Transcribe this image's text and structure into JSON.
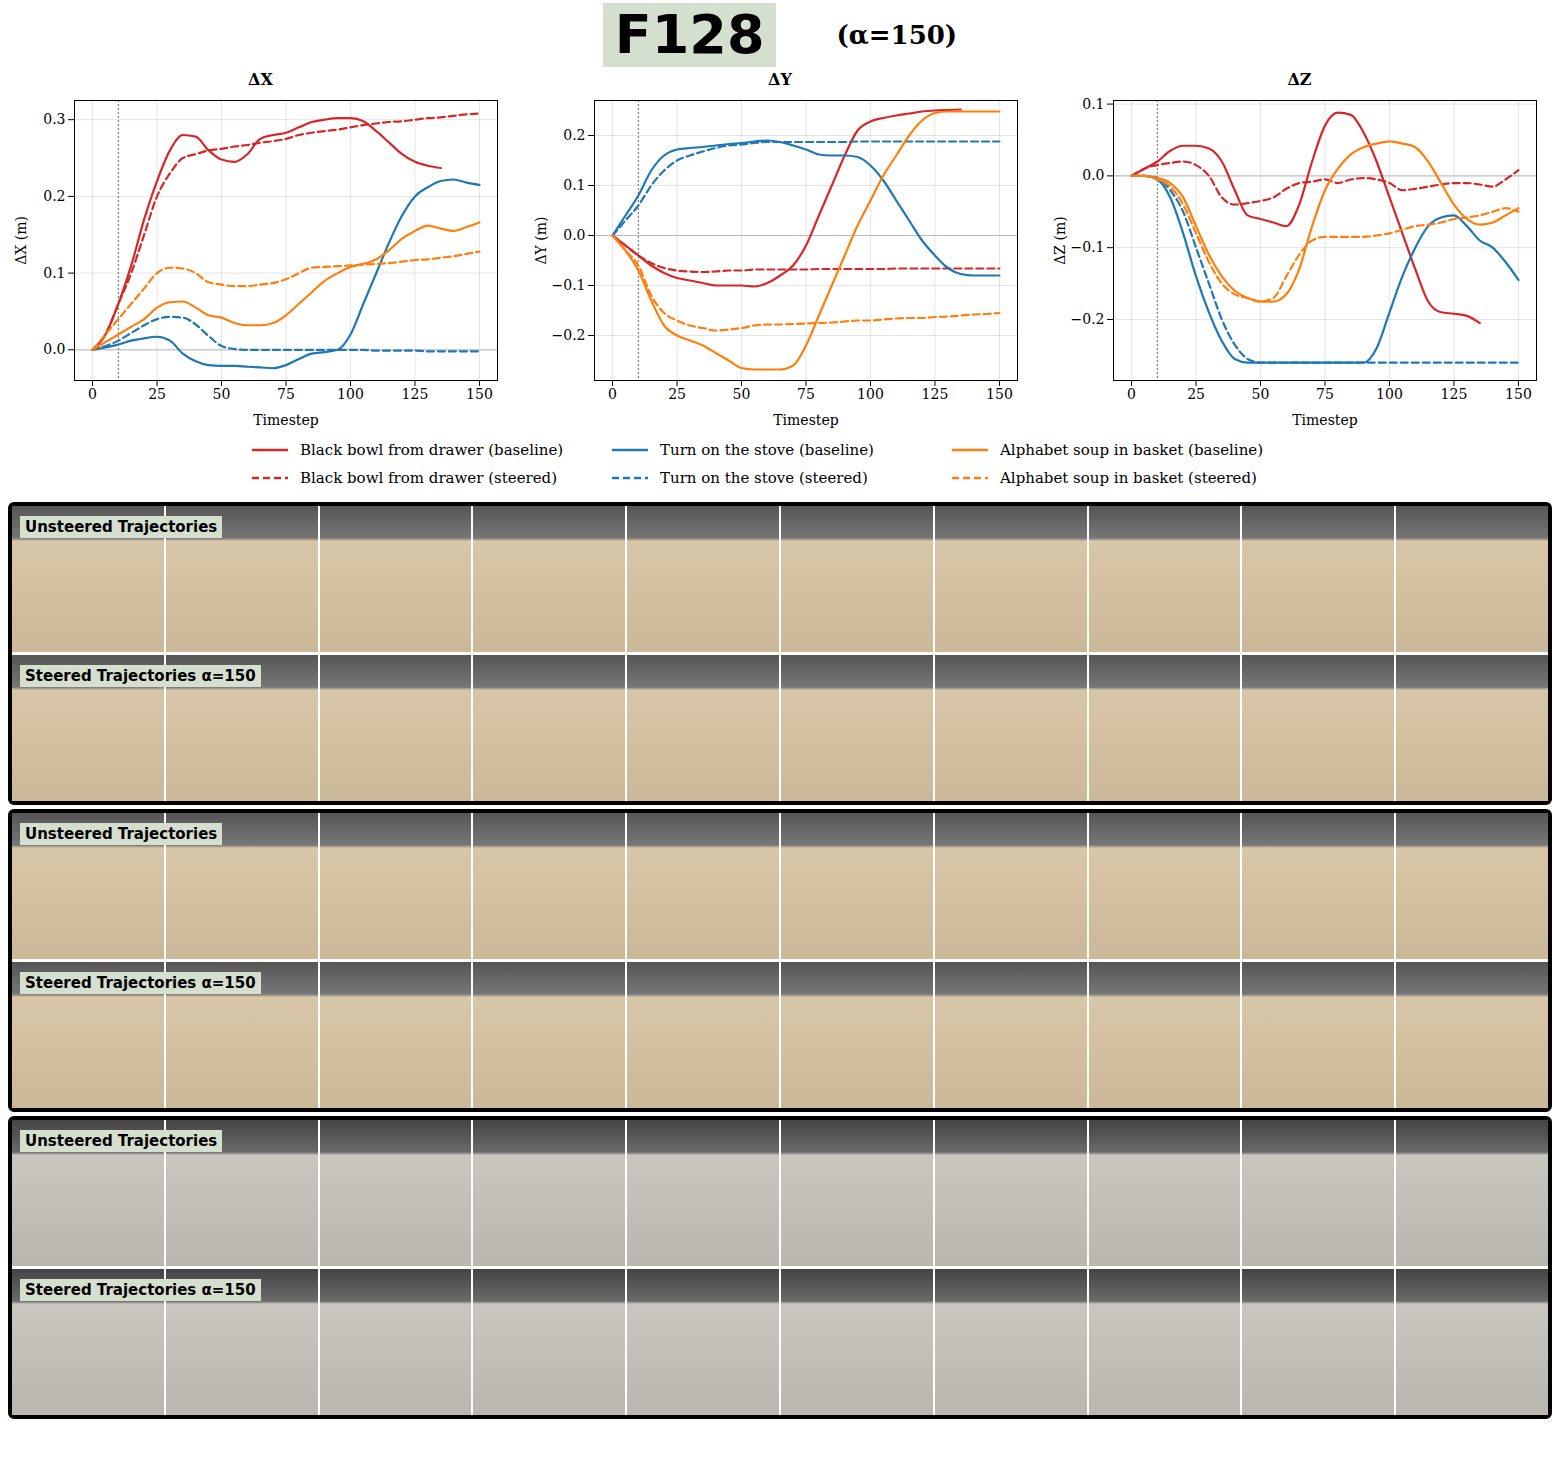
{
  "title": "F128",
  "subtitle": "(α=150)",
  "image_strips": [
    [
      "Unsteered Trajectories",
      "Steered Trajectories α=150"
    ],
    [
      "Unsteered Trajectories",
      "Steered Trajectories α=150"
    ],
    [
      "Unsteered Trajectories",
      "Steered Trajectories α=150"
    ]
  ],
  "chart_data": [
    {
      "type": "line",
      "title": "ΔX",
      "x_label": "Timestep",
      "y_label": "ΔX (m)",
      "grid": true,
      "vline": 10,
      "hline": 0,
      "xlim": [
        -7,
        157
      ],
      "xticks": [
        0,
        25,
        50,
        75,
        100,
        125,
        150
      ],
      "ylim": [
        -0.04,
        0.325
      ],
      "yticks": [
        {
          "value": 0,
          "label": "0.0"
        },
        {
          "value": 0.1,
          "label": "0.1"
        },
        {
          "value": 0.2,
          "label": "0.2"
        },
        {
          "value": 0.3,
          "label": "0.3"
        }
      ],
      "x": [
        0,
        5,
        10,
        15,
        20,
        25,
        30,
        35,
        40,
        45,
        50,
        55,
        60,
        65,
        70,
        75,
        80,
        85,
        90,
        95,
        100,
        105,
        110,
        115,
        120,
        125,
        130,
        135,
        140,
        145,
        150
      ],
      "series": [
        {
          "name": "Black bowl from drawer (baseline)",
          "color": "#d62728",
          "line_style": "solid",
          "values": [
            0,
            0.02,
            0.06,
            0.11,
            0.17,
            0.22,
            0.26,
            0.28,
            0.278,
            0.26,
            0.248,
            0.245,
            0.255,
            0.275,
            0.28,
            0.283,
            0.29,
            0.297,
            0.3,
            0.302,
            0.302,
            0.298,
            0.285,
            0.27,
            0.255,
            0.245,
            0.24,
            0.237,
            null,
            null,
            null
          ]
        },
        {
          "name": "Black bowl from drawer (steered)",
          "color": "#d62728",
          "line_style": "dashed",
          "values": [
            0,
            0.02,
            0.06,
            0.1,
            0.15,
            0.2,
            0.23,
            0.25,
            0.255,
            0.26,
            0.262,
            0.265,
            0.267,
            0.27,
            0.272,
            0.275,
            0.28,
            0.283,
            0.285,
            0.287,
            0.29,
            0.293,
            0.295,
            0.297,
            0.298,
            0.3,
            0.302,
            0.303,
            0.305,
            0.307,
            0.308
          ]
        },
        {
          "name": "Turn on the stove (baseline)",
          "color": "#1f77b4",
          "line_style": "solid",
          "values": [
            0,
            0.003,
            0.007,
            0.012,
            0.015,
            0.017,
            0.012,
            -0.005,
            -0.015,
            -0.02,
            -0.021,
            -0.021,
            -0.022,
            -0.023,
            -0.024,
            -0.02,
            -0.012,
            -0.005,
            -0.003,
            0,
            0.02,
            0.06,
            0.1,
            0.14,
            0.175,
            0.2,
            0.212,
            0.22,
            0.222,
            0.218,
            0.215
          ]
        },
        {
          "name": "Turn on the stove (steered)",
          "color": "#1f77b4",
          "line_style": "dashed",
          "values": [
            0,
            0.005,
            0.012,
            0.022,
            0.032,
            0.04,
            0.043,
            0.042,
            0.033,
            0.018,
            0.005,
            0.001,
            0,
            0,
            0,
            0,
            0,
            0,
            0,
            0,
            0,
            0,
            -0.001,
            -0.001,
            -0.001,
            -0.001,
            -0.002,
            -0.002,
            -0.002,
            -0.002,
            -0.002
          ]
        },
        {
          "name": "Alphabet soup in basket (baseline)",
          "color": "#ff7f0e",
          "line_style": "solid",
          "values": [
            0,
            0.01,
            0.02,
            0.03,
            0.04,
            0.055,
            0.062,
            0.063,
            0.055,
            0.045,
            0.042,
            0.035,
            0.032,
            0.032,
            0.035,
            0.045,
            0.06,
            0.075,
            0.09,
            0.1,
            0.108,
            0.112,
            0.118,
            0.13,
            0.145,
            0.155,
            0.162,
            0.158,
            0.155,
            0.16,
            0.166
          ]
        },
        {
          "name": "Alphabet soup in basket (steered)",
          "color": "#ff7f0e",
          "line_style": "dashed",
          "values": [
            0,
            0.02,
            0.04,
            0.06,
            0.08,
            0.1,
            0.107,
            0.106,
            0.1,
            0.088,
            0.085,
            0.083,
            0.083,
            0.085,
            0.087,
            0.092,
            0.1,
            0.107,
            0.108,
            0.109,
            0.11,
            0.111,
            0.112,
            0.113,
            0.115,
            0.117,
            0.118,
            0.12,
            0.122,
            0.125,
            0.128
          ]
        }
      ]
    },
    {
      "type": "line",
      "title": "ΔY",
      "x_label": "Timestep",
      "y_label": "ΔY (m)",
      "grid": true,
      "vline": 10,
      "hline": 0,
      "xlim": [
        -7,
        157
      ],
      "xticks": [
        0,
        25,
        50,
        75,
        100,
        125,
        150
      ],
      "ylim": [
        -0.29,
        0.27
      ],
      "yticks": [
        {
          "value": -0.2,
          "label": "−0.2"
        },
        {
          "value": -0.1,
          "label": "−0.1"
        },
        {
          "value": 0,
          "label": "0.0"
        },
        {
          "value": 0.1,
          "label": "0.1"
        },
        {
          "value": 0.2,
          "label": "0.2"
        }
      ],
      "x": [
        0,
        5,
        10,
        15,
        20,
        25,
        30,
        35,
        40,
        45,
        50,
        55,
        60,
        65,
        70,
        75,
        80,
        85,
        90,
        95,
        100,
        105,
        110,
        115,
        120,
        125,
        130,
        135,
        140,
        145,
        150
      ],
      "series": [
        {
          "name": "Black bowl from drawer (baseline)",
          "color": "#d62728",
          "line_style": "solid",
          "values": [
            0,
            -0.02,
            -0.04,
            -0.06,
            -0.075,
            -0.085,
            -0.09,
            -0.095,
            -0.1,
            -0.1,
            -0.1,
            -0.102,
            -0.095,
            -0.08,
            -0.06,
            -0.02,
            0.04,
            0.1,
            0.16,
            0.21,
            0.228,
            0.235,
            0.24,
            0.244,
            0.248,
            0.25,
            0.251,
            0.252,
            null,
            null,
            null
          ]
        },
        {
          "name": "Black bowl from drawer (steered)",
          "color": "#d62728",
          "line_style": "dashed",
          "values": [
            0,
            -0.02,
            -0.04,
            -0.055,
            -0.065,
            -0.07,
            -0.072,
            -0.073,
            -0.072,
            -0.07,
            -0.07,
            -0.068,
            -0.068,
            -0.068,
            -0.068,
            -0.068,
            -0.067,
            -0.067,
            -0.067,
            -0.067,
            -0.067,
            -0.067,
            -0.066,
            -0.066,
            -0.066,
            -0.066,
            -0.066,
            -0.066,
            -0.066,
            -0.066,
            -0.066
          ]
        },
        {
          "name": "Turn on the stove (baseline)",
          "color": "#1f77b4",
          "line_style": "solid",
          "values": [
            0,
            0.04,
            0.08,
            0.13,
            0.16,
            0.172,
            0.175,
            0.177,
            0.18,
            0.183,
            0.185,
            0.188,
            0.19,
            0.187,
            0.18,
            0.172,
            0.162,
            0.16,
            0.16,
            0.157,
            0.14,
            0.11,
            0.07,
            0.03,
            -0.01,
            -0.04,
            -0.065,
            -0.077,
            -0.08,
            -0.08,
            -0.08
          ]
        },
        {
          "name": "Turn on the stove (steered)",
          "color": "#1f77b4",
          "line_style": "dashed",
          "values": [
            0,
            0.03,
            0.06,
            0.1,
            0.13,
            0.15,
            0.16,
            0.168,
            0.175,
            0.18,
            0.182,
            0.185,
            0.187,
            0.187,
            0.187,
            0.187,
            0.187,
            0.187,
            0.187,
            0.188,
            0.188,
            0.188,
            0.188,
            0.188,
            0.188,
            0.188,
            0.188,
            0.188,
            0.188,
            0.188,
            0.188
          ]
        },
        {
          "name": "Alphabet soup in basket (baseline)",
          "color": "#ff7f0e",
          "line_style": "solid",
          "values": [
            0,
            -0.03,
            -0.07,
            -0.13,
            -0.18,
            -0.2,
            -0.21,
            -0.22,
            -0.235,
            -0.25,
            -0.265,
            -0.268,
            -0.268,
            -0.268,
            -0.26,
            -0.22,
            -0.16,
            -0.1,
            -0.04,
            0.02,
            0.07,
            0.12,
            0.16,
            0.2,
            0.23,
            0.245,
            0.248,
            0.248,
            0.248,
            0.248,
            0.248
          ]
        },
        {
          "name": "Alphabet soup in basket (steered)",
          "color": "#ff7f0e",
          "line_style": "dashed",
          "values": [
            0,
            -0.03,
            -0.06,
            -0.12,
            -0.155,
            -0.17,
            -0.18,
            -0.185,
            -0.19,
            -0.188,
            -0.185,
            -0.18,
            -0.178,
            -0.178,
            -0.177,
            -0.176,
            -0.175,
            -0.174,
            -0.172,
            -0.17,
            -0.17,
            -0.168,
            -0.166,
            -0.165,
            -0.165,
            -0.163,
            -0.162,
            -0.16,
            -0.158,
            -0.157,
            -0.155
          ]
        }
      ]
    },
    {
      "type": "line",
      "title": "ΔZ",
      "x_label": "Timestep",
      "y_label": "ΔZ (m)",
      "grid": true,
      "vline": 10,
      "hline": 0,
      "xlim": [
        -7,
        157
      ],
      "xticks": [
        0,
        25,
        50,
        75,
        100,
        125,
        150
      ],
      "ylim": [
        -0.285,
        0.105
      ],
      "yticks": [
        {
          "value": -0.2,
          "label": "−0.2"
        },
        {
          "value": -0.1,
          "label": "−0.1"
        },
        {
          "value": 0,
          "label": "0.0"
        },
        {
          "value": 0.1,
          "label": "0.1"
        }
      ],
      "x": [
        0,
        5,
        10,
        15,
        20,
        25,
        30,
        35,
        40,
        45,
        50,
        55,
        60,
        65,
        70,
        75,
        80,
        85,
        90,
        95,
        100,
        105,
        110,
        115,
        120,
        125,
        130,
        135,
        140,
        145,
        150
      ],
      "series": [
        {
          "name": "Black bowl from drawer (baseline)",
          "color": "#d62728",
          "line_style": "solid",
          "values": [
            0,
            0.01,
            0.02,
            0.035,
            0.042,
            0.042,
            0.038,
            0.02,
            -0.02,
            -0.055,
            -0.06,
            -0.065,
            -0.07,
            -0.04,
            0.02,
            0.07,
            0.088,
            0.085,
            0.06,
            0.02,
            -0.03,
            -0.08,
            -0.13,
            -0.175,
            -0.19,
            -0.192,
            -0.195,
            -0.205,
            null,
            null,
            null
          ]
        },
        {
          "name": "Black bowl from drawer (steered)",
          "color": "#d62728",
          "line_style": "dashed",
          "values": [
            0,
            0.01,
            0.015,
            0.018,
            0.02,
            0.015,
            0,
            -0.03,
            -0.04,
            -0.038,
            -0.035,
            -0.03,
            -0.018,
            -0.01,
            -0.008,
            -0.005,
            -0.01,
            -0.005,
            -0.003,
            -0.005,
            -0.01,
            -0.02,
            -0.018,
            -0.015,
            -0.012,
            -0.01,
            -0.01,
            -0.012,
            -0.015,
            -0.005,
            0.008
          ]
        },
        {
          "name": "Turn on the stove (baseline)",
          "color": "#1f77b4",
          "line_style": "solid",
          "values": [
            0,
            0,
            -0.005,
            -0.03,
            -0.08,
            -0.14,
            -0.19,
            -0.23,
            -0.255,
            -0.26,
            -0.26,
            -0.26,
            -0.26,
            -0.26,
            -0.26,
            -0.26,
            -0.26,
            -0.26,
            -0.26,
            -0.24,
            -0.19,
            -0.14,
            -0.1,
            -0.07,
            -0.058,
            -0.055,
            -0.07,
            -0.09,
            -0.1,
            -0.12,
            -0.145
          ]
        },
        {
          "name": "Turn on the stove (steered)",
          "color": "#1f77b4",
          "line_style": "dashed",
          "values": [
            0,
            0,
            -0.003,
            -0.02,
            -0.05,
            -0.1,
            -0.15,
            -0.2,
            -0.235,
            -0.255,
            -0.26,
            -0.26,
            -0.26,
            -0.26,
            -0.26,
            -0.26,
            -0.26,
            -0.26,
            -0.26,
            -0.26,
            -0.26,
            -0.26,
            -0.26,
            -0.26,
            -0.26,
            -0.26,
            -0.26,
            -0.26,
            -0.26,
            -0.26,
            -0.26
          ]
        },
        {
          "name": "Alphabet soup in basket (baseline)",
          "color": "#ff7f0e",
          "line_style": "solid",
          "values": [
            0,
            0,
            -0.003,
            -0.01,
            -0.03,
            -0.07,
            -0.11,
            -0.14,
            -0.16,
            -0.17,
            -0.175,
            -0.175,
            -0.165,
            -0.13,
            -0.07,
            -0.02,
            0.01,
            0.03,
            0.04,
            0.045,
            0.048,
            0.045,
            0.04,
            0.02,
            -0.01,
            -0.04,
            -0.06,
            -0.068,
            -0.065,
            -0.055,
            -0.045
          ]
        },
        {
          "name": "Alphabet soup in basket (steered)",
          "color": "#ff7f0e",
          "line_style": "dashed",
          "values": [
            0,
            0,
            -0.005,
            -0.015,
            -0.04,
            -0.08,
            -0.12,
            -0.15,
            -0.165,
            -0.17,
            -0.175,
            -0.17,
            -0.14,
            -0.11,
            -0.09,
            -0.085,
            -0.085,
            -0.085,
            -0.085,
            -0.083,
            -0.08,
            -0.075,
            -0.07,
            -0.068,
            -0.065,
            -0.06,
            -0.058,
            -0.055,
            -0.05,
            -0.045,
            -0.05
          ]
        }
      ]
    }
  ]
}
